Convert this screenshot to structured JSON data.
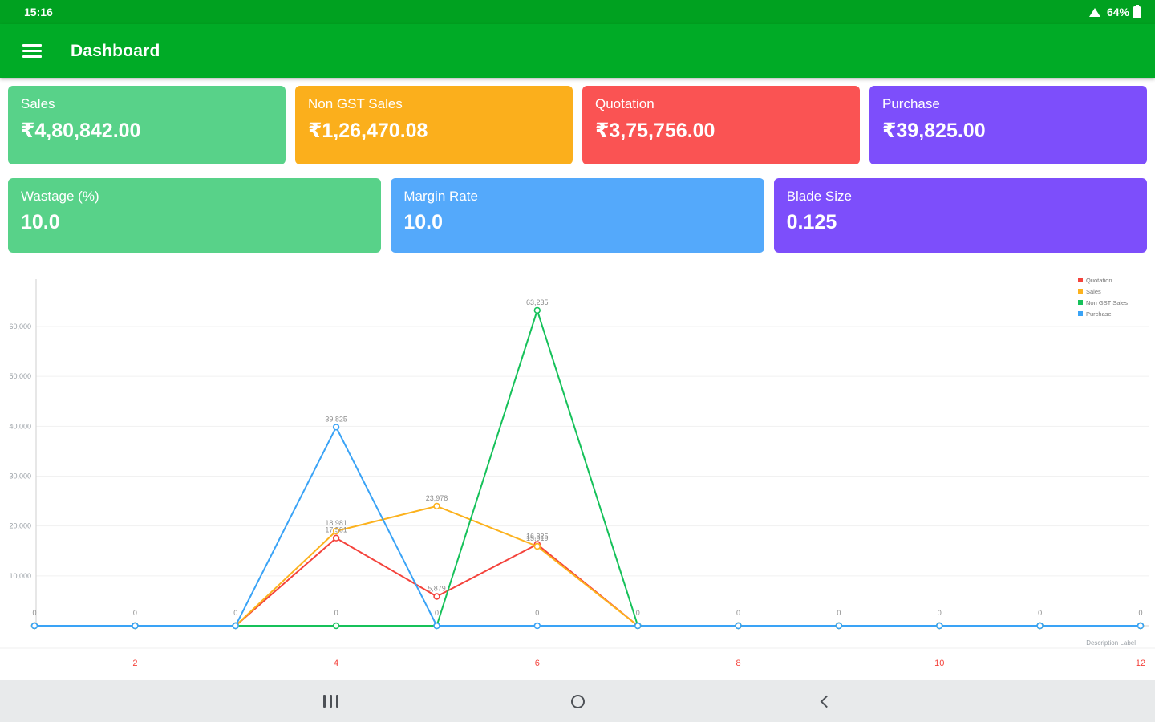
{
  "status_bar": {
    "time": "15:16",
    "battery_percent": "64%"
  },
  "app_bar": {
    "title": "Dashboard"
  },
  "summary_cards_row1": [
    {
      "name": "sales",
      "label": "Sales",
      "value": "₹4,80,842.00",
      "color": "#58d289"
    },
    {
      "name": "non-gst-sales",
      "label": "Non GST Sales",
      "value": "₹1,26,470.08",
      "color": "#fbaf1c"
    },
    {
      "name": "quotation",
      "label": "Quotation",
      "value": "₹3,75,756.00",
      "color": "#fa5353"
    },
    {
      "name": "purchase",
      "label": "Purchase",
      "value": "₹39,825.00",
      "color": "#7d4efb"
    }
  ],
  "summary_cards_row2": [
    {
      "name": "wastage",
      "label": "Wastage (%)",
      "value": "10.0",
      "color": "#58d289"
    },
    {
      "name": "margin-rate",
      "label": "Margin Rate",
      "value": "10.0",
      "color": "#54a9fb"
    },
    {
      "name": "blade-size",
      "label": "Blade Size",
      "value": "0.125",
      "color": "#7d4efb"
    }
  ],
  "chart_data": {
    "type": "line",
    "x": [
      1,
      2,
      3,
      4,
      5,
      6,
      7,
      8,
      9,
      10,
      11,
      12
    ],
    "x_tick_positions": [
      2,
      4,
      6,
      8,
      10,
      12
    ],
    "x_tick_labels": [
      "2",
      "4",
      "6",
      "8",
      "10",
      "12"
    ],
    "x_tick_color": "#f4433c",
    "xlabel": "Description Label",
    "ylim": [
      0,
      65000
    ],
    "y_ticks": [
      10000,
      20000,
      30000,
      40000,
      50000,
      60000
    ],
    "grid": true,
    "legend_position": "top-right",
    "series": [
      {
        "name": "Quotation",
        "color": "#f4433c",
        "values": [
          0,
          0,
          0,
          17581,
          5879,
          16325,
          0,
          0,
          0,
          0,
          0,
          0
        ]
      },
      {
        "name": "Sales",
        "color": "#fcb21e",
        "values": [
          0,
          0,
          0,
          18981,
          23978,
          15919,
          0,
          0,
          0,
          0,
          0,
          0
        ]
      },
      {
        "name": "Non GST Sales",
        "color": "#16c15a",
        "values": [
          0,
          0,
          0,
          0,
          0,
          63235,
          0,
          0,
          0,
          0,
          0,
          0
        ]
      },
      {
        "name": "Purchase",
        "color": "#3aa3f6",
        "values": [
          0,
          0,
          0,
          39825,
          0,
          0,
          0,
          0,
          0,
          0,
          0,
          0
        ]
      }
    ],
    "point_labels_zero": "0"
  },
  "nav_bar": {
    "buttons": [
      "recents",
      "home",
      "back"
    ]
  }
}
